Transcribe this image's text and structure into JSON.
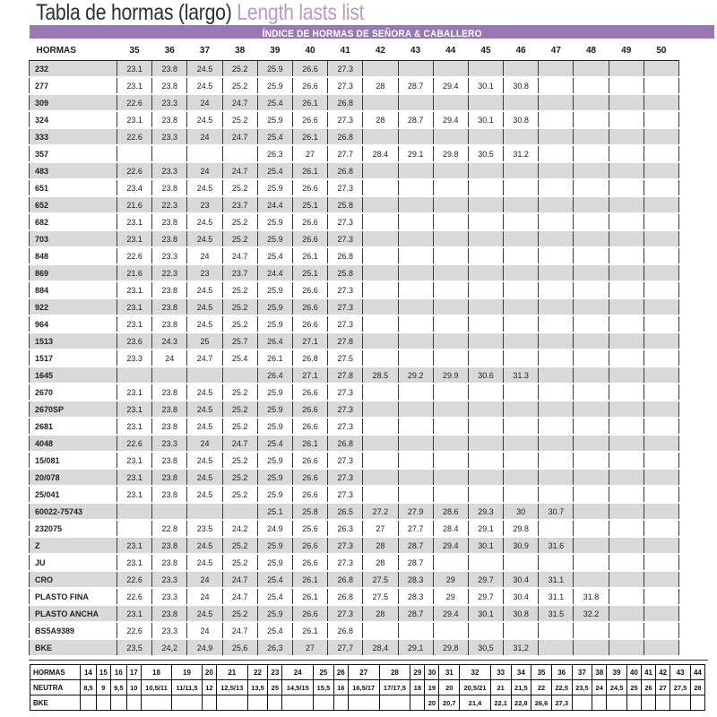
{
  "page": {
    "title_es": "Tabla de hormas (largo) ",
    "title_en": "Length lasts list",
    "banner": "ÍNDICE DE HORMAS DE SEÑORA & CABALLERO",
    "colors": {
      "accent": "#9878b2",
      "title_purple": "#b49cca",
      "row_gray": "#d9d9d9"
    }
  },
  "main_table": {
    "label_header": "HORMAS",
    "size_headers": [
      "35",
      "36",
      "37",
      "38",
      "39",
      "40",
      "41",
      "42",
      "43",
      "44",
      "45",
      "46",
      "47",
      "48",
      "49",
      "50"
    ],
    "rows": [
      {
        "name": "232",
        "values": [
          "23.1",
          "23.8",
          "24.5",
          "25.2",
          "25.9",
          "26.6",
          "27.3",
          "",
          "",
          "",
          "",
          "",
          "",
          "",
          "",
          ""
        ]
      },
      {
        "name": "277",
        "values": [
          "23.1",
          "23.8",
          "24.5",
          "25.2",
          "25.9",
          "26.6",
          "27.3",
          "28",
          "28.7",
          "29.4",
          "30.1",
          "30.8",
          "",
          "",
          "",
          ""
        ]
      },
      {
        "name": "309",
        "values": [
          "22.6",
          "23.3",
          "24",
          "24.7",
          "25.4",
          "26.1",
          "26.8",
          "",
          "",
          "",
          "",
          "",
          "",
          "",
          "",
          ""
        ]
      },
      {
        "name": "324",
        "values": [
          "23.1",
          "23.8",
          "24.5",
          "25.2",
          "25.9",
          "26.6",
          "27.3",
          "28",
          "28.7",
          "29.4",
          "30.1",
          "30.8",
          "",
          "",
          "",
          ""
        ]
      },
      {
        "name": "333",
        "values": [
          "22.6",
          "23.3",
          "24",
          "24.7",
          "25.4",
          "26.1",
          "26.8",
          "",
          "",
          "",
          "",
          "",
          "",
          "",
          "",
          ""
        ]
      },
      {
        "name": "357",
        "values": [
          "",
          "",
          "",
          "",
          "26.3",
          "27",
          "27.7",
          "28.4",
          "29.1",
          "29.8",
          "30.5",
          "31.2",
          "",
          "",
          "",
          ""
        ]
      },
      {
        "name": "483",
        "values": [
          "22.6",
          "23.3",
          "24",
          "24.7",
          "25.4",
          "26.1",
          "26.8",
          "",
          "",
          "",
          "",
          "",
          "",
          "",
          "",
          ""
        ]
      },
      {
        "name": "651",
        "values": [
          "23.4",
          "23.8",
          "24.5",
          "25.2",
          "25.9",
          "26.6",
          "27.3",
          "",
          "",
          "",
          "",
          "",
          "",
          "",
          "",
          ""
        ]
      },
      {
        "name": "652",
        "values": [
          "21.6",
          "22.3",
          "23",
          "23.7",
          "24.4",
          "25.1",
          "25.8",
          "",
          "",
          "",
          "",
          "",
          "",
          "",
          "",
          ""
        ]
      },
      {
        "name": "682",
        "values": [
          "23.1",
          "23.8",
          "24.5",
          "25.2",
          "25.9",
          "26.6",
          "27.3",
          "",
          "",
          "",
          "",
          "",
          "",
          "",
          "",
          ""
        ]
      },
      {
        "name": "703",
        "values": [
          "23.1",
          "23.8",
          "24.5",
          "25.2",
          "25.9",
          "26.6",
          "27.3",
          "",
          "",
          "",
          "",
          "",
          "",
          "",
          "",
          ""
        ]
      },
      {
        "name": "848",
        "values": [
          "22.6",
          "23.3",
          "24",
          "24.7",
          "25.4",
          "26.1",
          "26.8",
          "",
          "",
          "",
          "",
          "",
          "",
          "",
          "",
          ""
        ]
      },
      {
        "name": "869",
        "values": [
          "21.6",
          "22.3",
          "23",
          "23.7",
          "24.4",
          "25.1",
          "25.8",
          "",
          "",
          "",
          "",
          "",
          "",
          "",
          "",
          ""
        ]
      },
      {
        "name": "884",
        "values": [
          "23.1",
          "23.8",
          "24.5",
          "25.2",
          "25.9",
          "26.6",
          "27.3",
          "",
          "",
          "",
          "",
          "",
          "",
          "",
          "",
          ""
        ]
      },
      {
        "name": "922",
        "values": [
          "23.1",
          "23.8",
          "24.5",
          "25.2",
          "25.9",
          "26.6",
          "27.3",
          "",
          "",
          "",
          "",
          "",
          "",
          "",
          "",
          ""
        ]
      },
      {
        "name": "964",
        "values": [
          "23.1",
          "23.8",
          "24.5",
          "25.2",
          "25.9",
          "26.6",
          "27.3",
          "",
          "",
          "",
          "",
          "",
          "",
          "",
          "",
          ""
        ]
      },
      {
        "name": "1513",
        "values": [
          "23.6",
          "24.3",
          "25",
          "25.7",
          "26.4",
          "27.1",
          "27.8",
          "",
          "",
          "",
          "",
          "",
          "",
          "",
          "",
          ""
        ]
      },
      {
        "name": "1517",
        "values": [
          "23.3",
          "24",
          "24.7",
          "25.4",
          "26.1",
          "26.8",
          "27.5",
          "",
          "",
          "",
          "",
          "",
          "",
          "",
          "",
          ""
        ]
      },
      {
        "name": "1645",
        "values": [
          "",
          "",
          "",
          "",
          "26.4",
          "27.1",
          "27.8",
          "28.5",
          "29.2",
          "29.9",
          "30.6",
          "31.3",
          "",
          "",
          "",
          ""
        ]
      },
      {
        "name": "2670",
        "values": [
          "23.1",
          "23.8",
          "24.5",
          "25.2",
          "25.9",
          "26.6",
          "27.3",
          "",
          "",
          "",
          "",
          "",
          "",
          "",
          "",
          ""
        ]
      },
      {
        "name": "2670SP",
        "values": [
          "23.1",
          "23.8",
          "24.5",
          "25.2",
          "25.9",
          "26.6",
          "27.3",
          "",
          "",
          "",
          "",
          "",
          "",
          "",
          "",
          ""
        ]
      },
      {
        "name": "2681",
        "values": [
          "23.1",
          "23.8",
          "24.5",
          "25.2",
          "25.9",
          "26.6",
          "27.3",
          "",
          "",
          "",
          "",
          "",
          "",
          "",
          "",
          ""
        ]
      },
      {
        "name": "4048",
        "values": [
          "22.6",
          "23.3",
          "24",
          "24.7",
          "25.4",
          "26.1",
          "26.8",
          "",
          "",
          "",
          "",
          "",
          "",
          "",
          "",
          ""
        ]
      },
      {
        "name": "15/081",
        "values": [
          "23.1",
          "23.8",
          "24.5",
          "25.2",
          "25.9",
          "26.6",
          "27.3",
          "",
          "",
          "",
          "",
          "",
          "",
          "",
          "",
          ""
        ]
      },
      {
        "name": "20/078",
        "values": [
          "23.1",
          "23.8",
          "24.5",
          "25.2",
          "25.9",
          "26.6",
          "27.3",
          "",
          "",
          "",
          "",
          "",
          "",
          "",
          "",
          ""
        ]
      },
      {
        "name": "25/041",
        "values": [
          "23.1",
          "23.8",
          "24.5",
          "25.2",
          "25.9",
          "26.6",
          "27.3",
          "",
          "",
          "",
          "",
          "",
          "",
          "",
          "",
          ""
        ]
      },
      {
        "name": "60022-75743",
        "values": [
          "",
          "",
          "",
          "",
          "25.1",
          "25.8",
          "26.5",
          "27.2",
          "27.9",
          "28.6",
          "29.3",
          "30",
          "30.7",
          "",
          "",
          ""
        ]
      },
      {
        "name": "232075",
        "values": [
          "",
          "22.8",
          "23.5",
          "24.2",
          "24.9",
          "25.6",
          "26.3",
          "27",
          "27.7",
          "28.4",
          "29.1",
          "29.8",
          "",
          "",
          "",
          ""
        ]
      },
      {
        "name": "Z",
        "values": [
          "23.1",
          "23.8",
          "24.5",
          "25.2",
          "25.9",
          "26.6",
          "27.3",
          "28",
          "28.7",
          "29.4",
          "30.1",
          "30.9",
          "31.6",
          "",
          "",
          ""
        ]
      },
      {
        "name": "JU",
        "values": [
          "23.1",
          "23.8",
          "24.5",
          "25.2",
          "25.9",
          "26.6",
          "27.3",
          "28",
          "28.7",
          "",
          "",
          "",
          "",
          "",
          "",
          ""
        ]
      },
      {
        "name": "CRO",
        "values": [
          "22.6",
          "23.3",
          "24",
          "24.7",
          "25.4",
          "26.1",
          "26.8",
          "27.5",
          "28.3",
          "29",
          "29.7",
          "30.4",
          "31.1",
          "",
          "",
          ""
        ]
      },
      {
        "name": "PLASTO FINA",
        "values": [
          "22.6",
          "23.3",
          "24",
          "24.7",
          "25.4",
          "26.1",
          "26.8",
          "27.5",
          "28.3",
          "29",
          "29.7",
          "30.4",
          "31.1",
          "31.8",
          "",
          ""
        ]
      },
      {
        "name": "PLASTO ANCHA",
        "values": [
          "23.1",
          "23.8",
          "24.5",
          "25.2",
          "25.9",
          "26.6",
          "27.3",
          "28",
          "28.7",
          "29.4",
          "30.1",
          "30.8",
          "31.5",
          "32.2",
          "",
          ""
        ]
      },
      {
        "name": "BS5A9389",
        "values": [
          "22.6",
          "23.3",
          "24",
          "24.7",
          "25.4",
          "26.1",
          "26.8",
          "",
          "",
          "",
          "",
          "",
          "",
          "",
          "",
          ""
        ]
      },
      {
        "name": "BKE",
        "values": [
          "23,5",
          "24,2",
          "24,9",
          "25,6",
          "26,3",
          "27",
          "27,7",
          "28,4",
          "29,1",
          "29,8",
          "30,5",
          "31,2",
          "",
          "",
          "",
          ""
        ]
      }
    ]
  },
  "bottom_table": {
    "row_labels": [
      "HORMAS",
      "NEUTRA",
      "BKE"
    ],
    "sizes": [
      "14",
      "15",
      "16",
      "17",
      "18",
      "19",
      "20",
      "21",
      "22",
      "23",
      "24",
      "25",
      "26",
      "27",
      "28",
      "29",
      "30",
      "31",
      "32",
      "33",
      "34",
      "35",
      "36",
      "37",
      "38",
      "39",
      "40",
      "41",
      "42",
      "43",
      "44"
    ],
    "neutra": [
      "8,5",
      "9",
      "9,5",
      "10",
      "10,5/11",
      "11/11,5",
      "12",
      "12,5/13",
      "13,5",
      "25",
      "14,5/15",
      "15,5",
      "16",
      "16,5/17",
      "17/17,5",
      "18",
      "19",
      "20",
      "20,5/21",
      "21",
      "21,5",
      "22",
      "22,5",
      "23,5",
      "24",
      "24,5",
      "25",
      "26",
      "27",
      "27,5",
      "28"
    ],
    "bke": [
      "",
      "",
      "",
      "",
      "",
      "",
      "",
      "",
      "",
      "",
      "",
      "",
      "",
      "",
      "",
      "",
      "20",
      "20,7",
      "21,4",
      "22,1",
      "22,8",
      "26,6",
      "27,3",
      "",
      "",
      "",
      "",
      "",
      "",
      "",
      ""
    ]
  }
}
